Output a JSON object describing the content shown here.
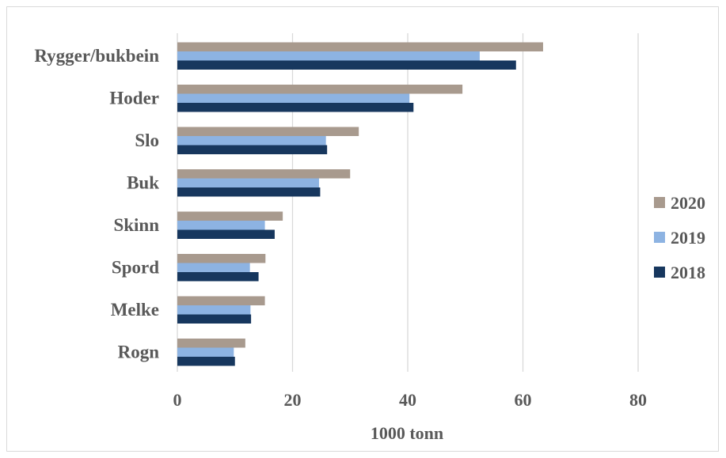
{
  "chart_data": {
    "type": "bar",
    "orientation": "horizontal",
    "categories": [
      "Rygger/bukbein",
      "Hoder",
      "Slo",
      "Buk",
      "Skinn",
      "Spord",
      "Melke",
      "Rogn"
    ],
    "series": [
      {
        "name": "2020",
        "color": "#a89a8e",
        "values": [
          63.5,
          49.5,
          31.5,
          30,
          18.3,
          15.3,
          15.2,
          11.8
        ]
      },
      {
        "name": "2019",
        "color": "#8db3e2",
        "values": [
          52.5,
          40.3,
          25.8,
          24.6,
          15.2,
          12.6,
          12.7,
          9.8
        ]
      },
      {
        "name": "2018",
        "color": "#17375e",
        "values": [
          58.8,
          41,
          26,
          24.8,
          16.9,
          14.1,
          12.8,
          10
        ]
      }
    ],
    "xlabel": "1000 tonn",
    "xlim": [
      0,
      80
    ],
    "xticks": [
      0,
      20,
      40,
      60,
      80
    ],
    "grid": "vertical",
    "legend": {
      "placement": "right",
      "order": [
        "2020",
        "2019",
        "2018"
      ]
    }
  }
}
